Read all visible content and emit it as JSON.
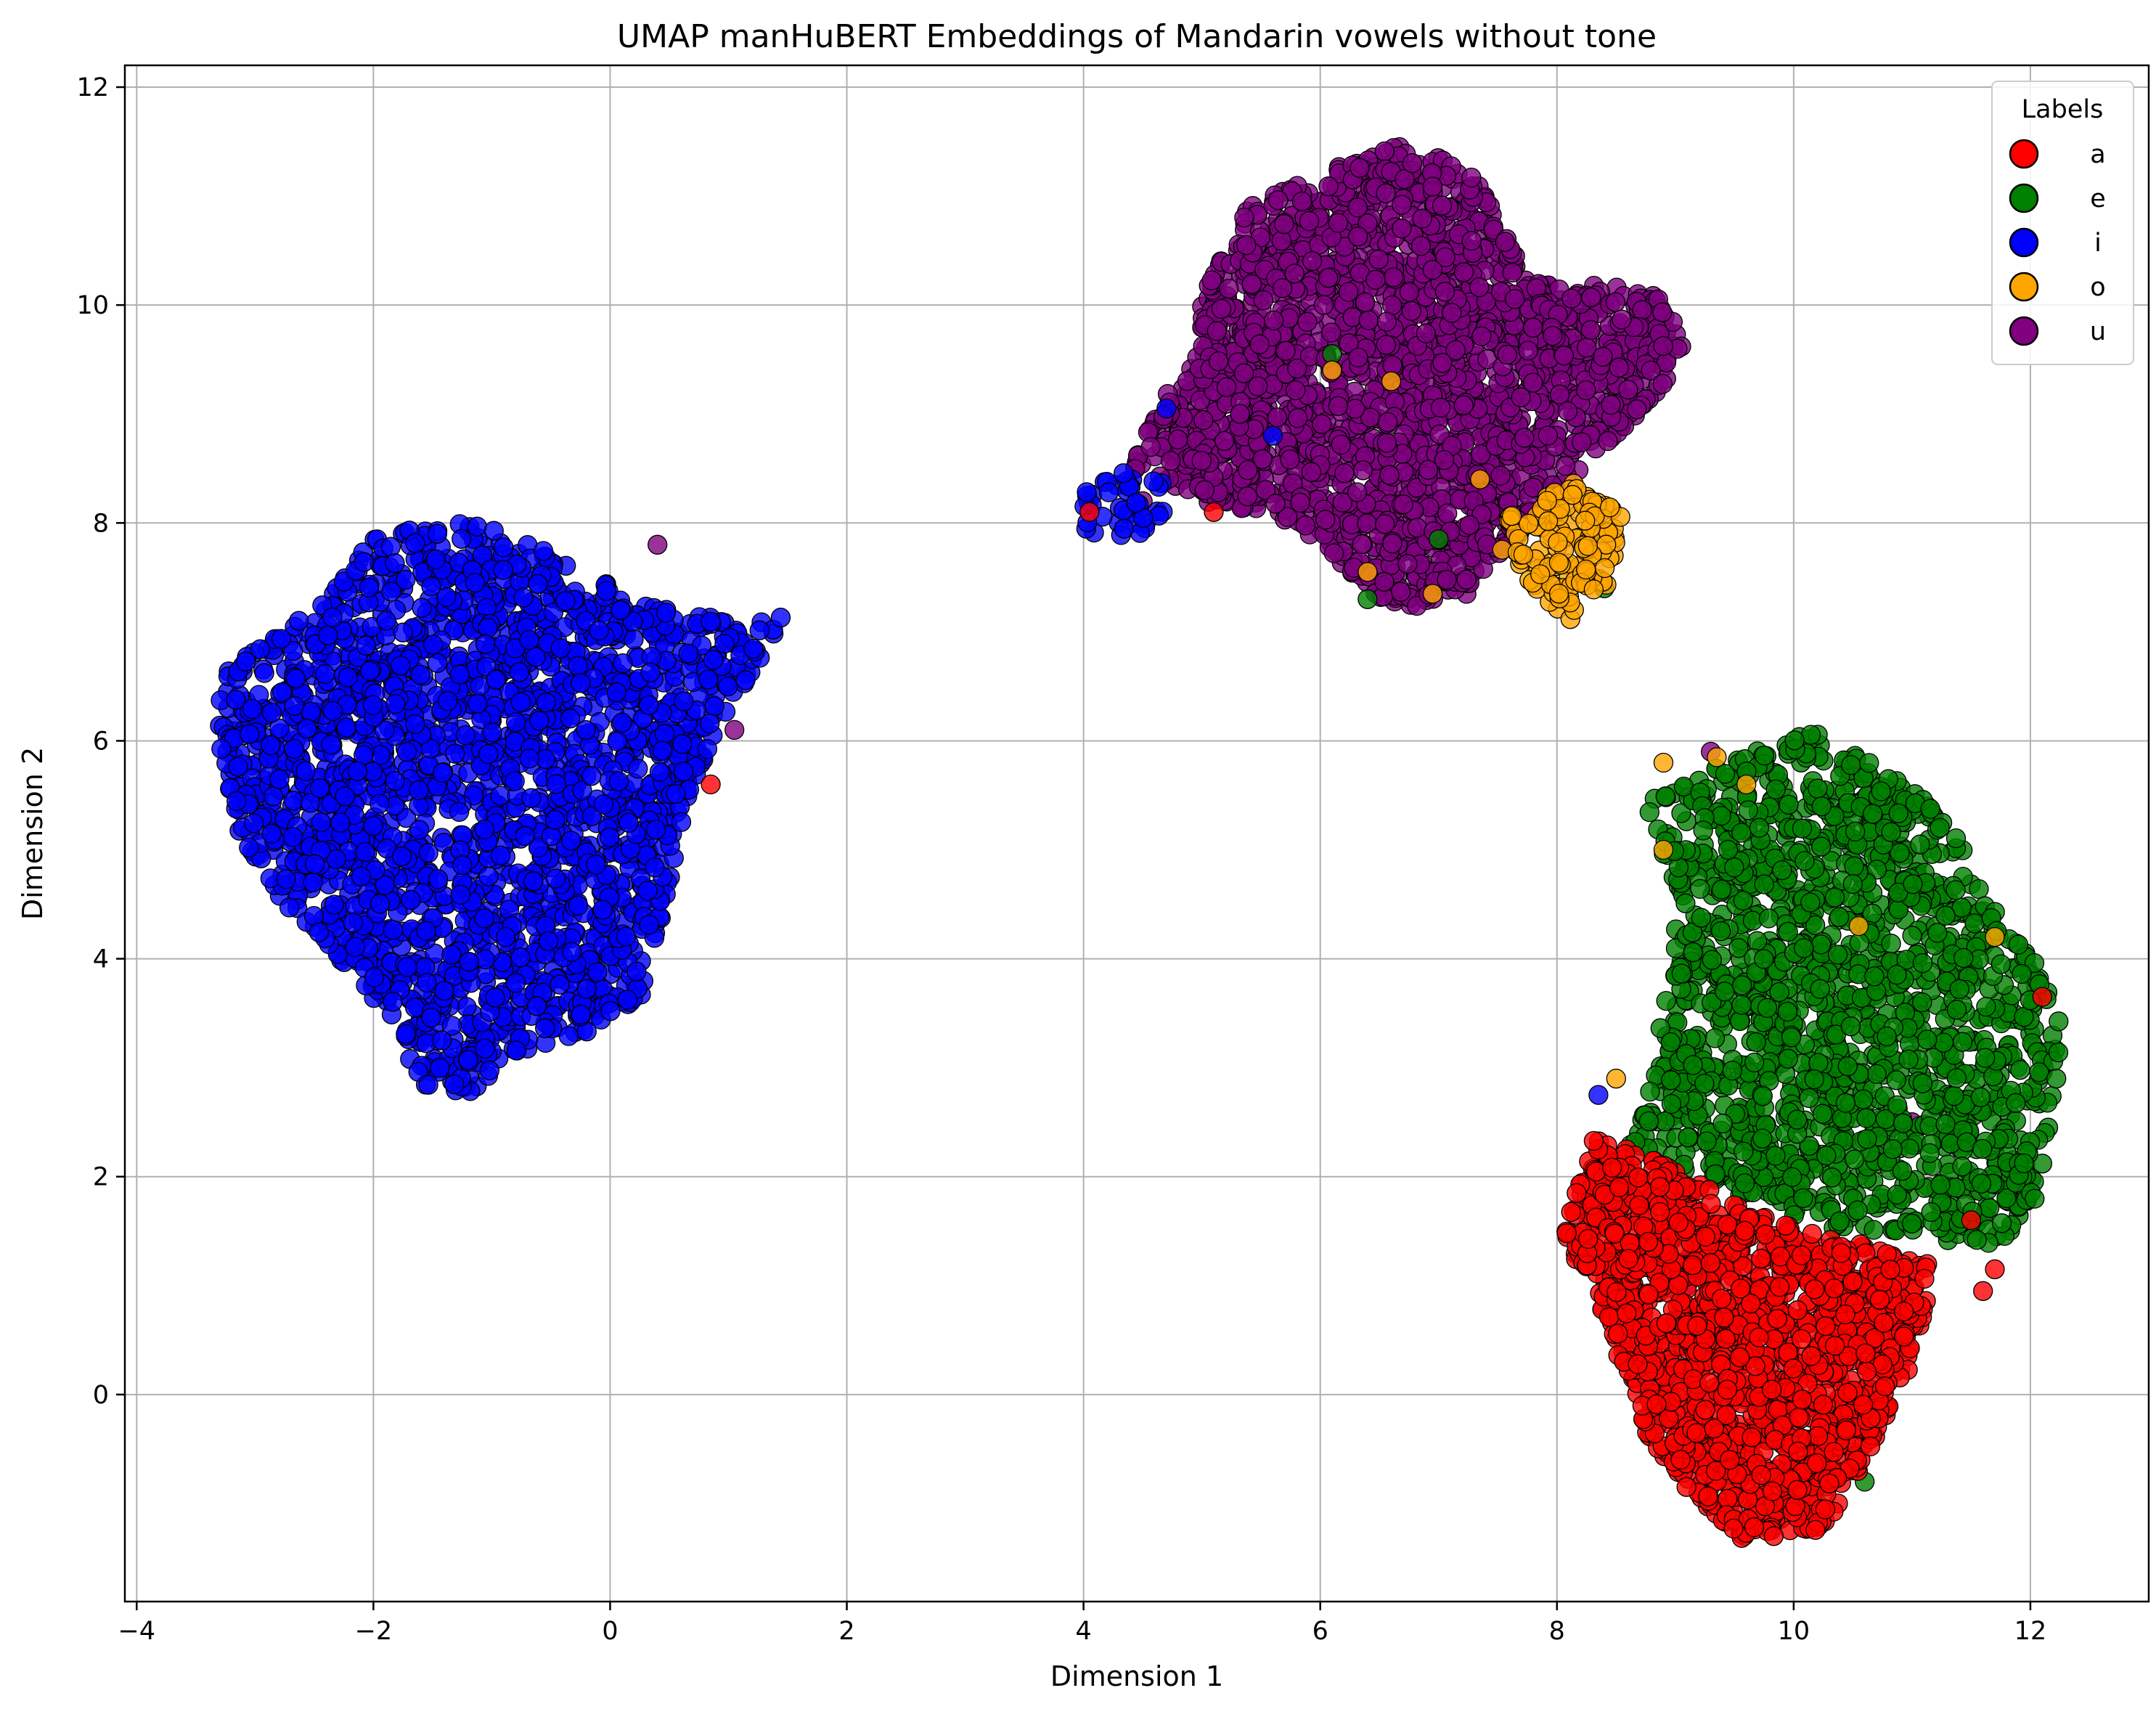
{
  "chart_data": {
    "type": "scatter",
    "title": "UMAP manHuBERT Embeddings of Mandarin vowels without tone",
    "xlabel": "Dimension 1",
    "ylabel": "Dimension 2",
    "xlim": [
      -4.1,
      13.0
    ],
    "ylim": [
      -1.9,
      12.2
    ],
    "xticks": [
      -4,
      -2,
      0,
      2,
      4,
      6,
      8,
      10,
      12
    ],
    "xtick_labels": [
      "−4",
      "−2",
      "0",
      "2",
      "4",
      "6",
      "8",
      "10",
      "12"
    ],
    "yticks": [
      0,
      2,
      4,
      6,
      8,
      10,
      12
    ],
    "ytick_labels": [
      "0",
      "2",
      "4",
      "6",
      "8",
      "10",
      "12"
    ],
    "grid": true,
    "legend": {
      "title": "Labels",
      "placement": "top-right",
      "entries": [
        "a",
        "e",
        "i",
        "o",
        "u"
      ]
    },
    "series": [
      {
        "name": "a",
        "color": "#ff0000",
        "clusters": [
          {
            "polygon": [
              [
                8.2,
                2.4
              ],
              [
                9.0,
                2.1
              ],
              [
                9.8,
                1.6
              ],
              [
                10.5,
                1.4
              ],
              [
                11.2,
                1.2
              ],
              [
                11.0,
                0.3
              ],
              [
                10.6,
                -0.6
              ],
              [
                10.4,
                -1.0
              ],
              [
                10.2,
                -1.25
              ],
              [
                9.6,
                -1.35
              ],
              [
                9.2,
                -1.0
              ],
              [
                8.7,
                -0.3
              ],
              [
                8.5,
                0.4
              ],
              [
                8.3,
                1.0
              ],
              [
                8.05,
                1.4
              ],
              [
                8.2,
                2.0
              ]
            ],
            "count": 1500
          }
        ],
        "points": [
          [
            11.6,
            0.95
          ],
          [
            11.7,
            1.15
          ],
          [
            12.1,
            3.65
          ],
          [
            11.5,
            1.6
          ],
          [
            0.85,
            5.6
          ],
          [
            4.05,
            8.1
          ],
          [
            5.1,
            8.1
          ]
        ]
      },
      {
        "name": "e",
        "color": "#008000",
        "clusters": [
          {
            "polygon": [
              [
                8.7,
                5.4
              ],
              [
                9.4,
                5.8
              ],
              [
                10.2,
                6.1
              ],
              [
                10.8,
                5.7
              ],
              [
                11.3,
                5.3
              ],
              [
                11.6,
                4.6
              ],
              [
                12.0,
                4.1
              ],
              [
                12.3,
                3.3
              ],
              [
                12.2,
                2.6
              ],
              [
                12.0,
                1.6
              ],
              [
                11.6,
                1.3
              ],
              [
                11.0,
                1.5
              ],
              [
                10.4,
                1.5
              ],
              [
                9.8,
                1.7
              ],
              [
                9.2,
                2.0
              ],
              [
                8.6,
                2.3
              ],
              [
                8.8,
                3.0
              ],
              [
                9.0,
                4.0
              ],
              [
                9.0,
                4.7
              ]
            ],
            "count": 1600
          }
        ],
        "points": [
          [
            10.6,
            -0.8
          ],
          [
            10.2,
            -1.0
          ],
          [
            6.1,
            9.55
          ],
          [
            7.0,
            7.85
          ],
          [
            8.4,
            7.4
          ],
          [
            6.4,
            7.3
          ]
        ]
      },
      {
        "name": "i",
        "color": "#0000ff",
        "clusters": [
          {
            "polygon": [
              [
                -3.3,
                6.6
              ],
              [
                -2.5,
                7.2
              ],
              [
                -2.0,
                7.9
              ],
              [
                -1.2,
                8.05
              ],
              [
                -0.6,
                7.8
              ],
              [
                0.2,
                7.3
              ],
              [
                1.0,
                7.1
              ],
              [
                1.5,
                7.15
              ],
              [
                0.9,
                6.1
              ],
              [
                0.6,
                5.2
              ],
              [
                0.4,
                4.2
              ],
              [
                0.3,
                3.7
              ],
              [
                -0.2,
                3.3
              ],
              [
                -0.8,
                3.15
              ],
              [
                -1.2,
                2.75
              ],
              [
                -1.6,
                2.85
              ],
              [
                -1.9,
                3.5
              ],
              [
                -2.3,
                4.0
              ],
              [
                -2.8,
                4.5
              ],
              [
                -3.1,
                5.0
              ],
              [
                -3.3,
                5.9
              ]
            ],
            "count": 2200
          },
          {
            "polygon": [
              [
                4.0,
                8.3
              ],
              [
                4.4,
                8.5
              ],
              [
                4.8,
                8.3
              ],
              [
                4.6,
                7.95
              ],
              [
                4.2,
                7.8
              ],
              [
                3.95,
                8.0
              ]
            ],
            "count": 40
          }
        ],
        "points": [
          [
            4.7,
            9.05
          ],
          [
            10.9,
            4.6
          ],
          [
            8.35,
            2.75
          ],
          [
            5.6,
            8.8
          ]
        ]
      },
      {
        "name": "o",
        "color": "#ffa500",
        "clusters": [
          {
            "polygon": [
              [
                7.6,
                8.1
              ],
              [
                8.2,
                8.4
              ],
              [
                8.6,
                8.0
              ],
              [
                8.5,
                7.5
              ],
              [
                8.1,
                7.1
              ],
              [
                7.7,
                7.5
              ],
              [
                7.5,
                7.8
              ]
            ],
            "count": 140
          }
        ],
        "points": [
          [
            6.1,
            9.4
          ],
          [
            6.6,
            9.3
          ],
          [
            6.95,
            7.35
          ],
          [
            8.9,
            5.8
          ],
          [
            9.6,
            5.6
          ],
          [
            9.35,
            5.85
          ],
          [
            10.55,
            4.3
          ],
          [
            11.7,
            4.2
          ],
          [
            8.5,
            2.9
          ],
          [
            8.9,
            5.0
          ],
          [
            7.35,
            8.4
          ],
          [
            6.4,
            7.55
          ]
        ]
      },
      {
        "name": "u",
        "color": "#800080",
        "clusters": [
          {
            "polygon": [
              [
                5.0,
                10.1
              ],
              [
                5.4,
                10.9
              ],
              [
                6.0,
                11.2
              ],
              [
                6.7,
                11.5
              ],
              [
                7.3,
                11.2
              ],
              [
                7.8,
                10.2
              ],
              [
                8.4,
                10.2
              ],
              [
                8.9,
                10.1
              ],
              [
                9.1,
                9.5
              ],
              [
                8.7,
                9.0
              ],
              [
                8.3,
                8.6
              ],
              [
                8.0,
                8.2
              ],
              [
                7.6,
                7.8
              ],
              [
                7.2,
                7.3
              ],
              [
                6.6,
                7.2
              ],
              [
                6.2,
                7.6
              ],
              [
                5.8,
                8.0
              ],
              [
                5.0,
                8.2
              ],
              [
                4.4,
                8.5
              ],
              [
                4.7,
                9.2
              ],
              [
                5.0,
                9.6
              ]
            ],
            "count": 2300
          }
        ],
        "points": [
          [
            0.4,
            7.8
          ],
          [
            1.05,
            6.1
          ],
          [
            9.3,
            5.9
          ],
          [
            10.6,
            3.6
          ],
          [
            11.0,
            2.5
          ],
          [
            9.1,
            1.0
          ],
          [
            4.5,
            8.2
          ]
        ]
      }
    ]
  }
}
